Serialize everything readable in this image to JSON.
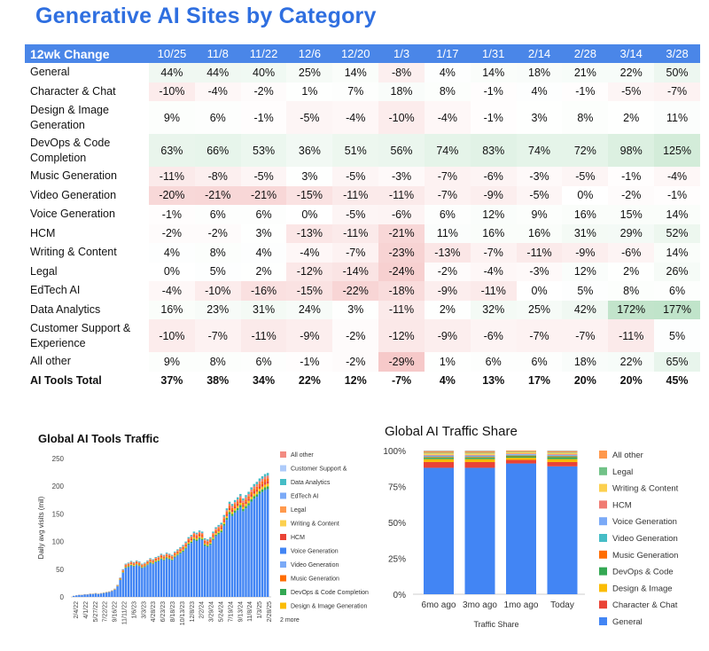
{
  "title": "Generative AI Sites by Category",
  "table": {
    "header_label": "12wk Change",
    "columns": [
      "10/25",
      "11/8",
      "11/22",
      "12/6",
      "12/20",
      "1/3",
      "1/17",
      "1/31",
      "2/14",
      "2/28",
      "3/14",
      "3/28"
    ],
    "rows": [
      {
        "label": "General",
        "values": [
          44,
          44,
          40,
          25,
          14,
          -8,
          4,
          14,
          18,
          21,
          22,
          50
        ]
      },
      {
        "label": "Character & Chat",
        "values": [
          -10,
          -4,
          -2,
          1,
          7,
          18,
          8,
          -1,
          4,
          -1,
          -5,
          -7
        ]
      },
      {
        "label": "Design & Image Generation",
        "values": [
          9,
          6,
          -1,
          -5,
          -4,
          -10,
          -4,
          -1,
          3,
          8,
          2,
          11
        ]
      },
      {
        "label": "DevOps & Code Completion",
        "values": [
          63,
          66,
          53,
          36,
          51,
          56,
          74,
          83,
          74,
          72,
          98,
          125
        ]
      },
      {
        "label": "Music Generation",
        "values": [
          -11,
          -8,
          -5,
          3,
          -5,
          -3,
          -7,
          -6,
          -3,
          -5,
          -1,
          -4
        ]
      },
      {
        "label": "Video Generation",
        "values": [
          -20,
          -21,
          -21,
          -15,
          -11,
          -11,
          -7,
          -9,
          -5,
          0,
          -2,
          -1
        ]
      },
      {
        "label": "Voice Generation",
        "values": [
          -1,
          6,
          6,
          0,
          -5,
          -6,
          6,
          12,
          9,
          16,
          15,
          14
        ]
      },
      {
        "label": "HCM",
        "values": [
          -2,
          -2,
          3,
          -13,
          -11,
          -21,
          11,
          16,
          16,
          31,
          29,
          52
        ]
      },
      {
        "label": "Writing & Content",
        "values": [
          4,
          8,
          4,
          -4,
          -7,
          -23,
          -13,
          -7,
          -11,
          -9,
          -6,
          14
        ]
      },
      {
        "label": "Legal",
        "values": [
          0,
          5,
          2,
          -12,
          -14,
          -24,
          -2,
          -4,
          -3,
          12,
          2,
          26
        ]
      },
      {
        "label": "EdTech AI",
        "values": [
          -4,
          -10,
          -16,
          -15,
          -22,
          -18,
          -9,
          -11,
          0,
          5,
          8,
          6
        ]
      },
      {
        "label": "Data Analytics",
        "values": [
          16,
          23,
          31,
          24,
          3,
          -11,
          2,
          32,
          25,
          42,
          172,
          177
        ]
      },
      {
        "label": "Customer Support & Experience",
        "values": [
          -10,
          -7,
          -11,
          -9,
          -2,
          -12,
          -9,
          -6,
          -7,
          -7,
          -11,
          5
        ]
      },
      {
        "label": "All other",
        "values": [
          9,
          8,
          6,
          -1,
          -2,
          -29,
          1,
          6,
          6,
          18,
          22,
          65
        ]
      },
      {
        "label": "AI Tools Total",
        "values": [
          37,
          38,
          34,
          22,
          12,
          -7,
          4,
          13,
          17,
          20,
          20,
          45
        ],
        "bold": true
      }
    ]
  },
  "chart_data": [
    {
      "type": "area",
      "title": "Global AI Tools Traffic",
      "ylabel": "Daily avg visits (mil)",
      "xlabel": "",
      "ylim": [
        0,
        250
      ],
      "yticks": [
        0,
        50,
        100,
        150,
        200,
        250
      ],
      "x_tick_labels": [
        "2/4/22",
        "4/1/22",
        "5/27/22",
        "7/22/22",
        "9/16/22",
        "11/11/22",
        "1/6/23",
        "3/3/23",
        "4/28/23",
        "6/23/23",
        "8/18/23",
        "10/13/23",
        "12/8/23",
        "2/2/24",
        "3/29/24",
        "5/24/24",
        "7/19/24",
        "9/13/24",
        "11/8/24",
        "1/3/25",
        "2/28/25"
      ],
      "total_values": [
        2,
        3,
        4,
        4,
        5,
        5,
        6,
        6,
        7,
        6,
        7,
        8,
        9,
        10,
        12,
        15,
        22,
        35,
        50,
        60,
        62,
        65,
        63,
        66,
        64,
        60,
        62,
        66,
        70,
        68,
        72,
        74,
        78,
        76,
        80,
        78,
        76,
        82,
        86,
        90,
        94,
        100,
        108,
        112,
        118,
        116,
        120,
        118,
        106,
        104,
        108,
        118,
        126,
        130,
        134,
        148,
        160,
        172,
        168,
        175,
        180,
        186,
        178,
        184,
        190,
        198,
        204,
        208,
        214,
        218,
        222,
        224
      ],
      "general_fraction": 0.87,
      "legend": [
        "All other",
        "Customer Support &",
        "Data Analytics",
        "EdTech AI",
        "Legal",
        "Writing & Content",
        "HCM",
        "Voice Generation",
        "Video Generation",
        "Music Generation",
        "DevOps & Code Completion",
        "Design & Image Generation"
      ],
      "legend_more": "2 more"
    },
    {
      "type": "bar",
      "stacked": true,
      "title": "Global AI Traffic Share",
      "xlabel": "Traffic Share",
      "ylabel": "",
      "ylim": [
        0,
        100
      ],
      "yticks": [
        "0%",
        "25%",
        "50%",
        "75%",
        "100%"
      ],
      "categories": [
        "6mo ago",
        "3mo ago",
        "1mo ago",
        "Today"
      ],
      "series": [
        {
          "name": "General",
          "values": [
            88,
            88,
            91,
            89
          ]
        },
        {
          "name": "Character & Chat",
          "values": [
            4,
            4,
            2.5,
            3
          ]
        },
        {
          "name": "Design & Image",
          "values": [
            2,
            2,
            1.5,
            2
          ]
        },
        {
          "name": "DevOps & Code",
          "values": [
            1,
            1,
            1,
            1.5
          ]
        },
        {
          "name": "Music Generation",
          "values": [
            0.5,
            0.5,
            0.5,
            0.5
          ]
        },
        {
          "name": "Video Generation",
          "values": [
            0.5,
            0.5,
            0.5,
            0.5
          ]
        },
        {
          "name": "Voice Generation",
          "values": [
            0.5,
            0.5,
            0.5,
            0.5
          ]
        },
        {
          "name": "HCM",
          "values": [
            0.5,
            0.5,
            0.5,
            0.5
          ]
        },
        {
          "name": "Writing & Content",
          "values": [
            1,
            1,
            0.8,
            0.8
          ]
        },
        {
          "name": "Legal",
          "values": [
            0.5,
            0.5,
            0.4,
            0.4
          ]
        },
        {
          "name": "All other",
          "values": [
            1,
            1,
            0.8,
            0.8
          ]
        }
      ],
      "legend": [
        "All other",
        "Legal",
        "Writing & Content",
        "HCM",
        "Voice Generation",
        "Video Generation",
        "Music Generation",
        "DevOps & Code",
        "Design & Image",
        "Character & Chat",
        "General"
      ]
    }
  ],
  "colors": {
    "header_blue": "#4a86e8",
    "title_blue": "#2f6fe0",
    "General": "#4285f4",
    "Character & Chat": "#ea4335",
    "Design & Image": "#fbbc04",
    "DevOps & Code": "#34a853",
    "Music Generation": "#ff6d01",
    "Video Generation": "#46bdc6",
    "Voice Generation": "#7baaf7",
    "HCM": "#f07b72",
    "Writing & Content": "#fcd04f",
    "Legal": "#71c287",
    "All other": "#ff994d"
  }
}
